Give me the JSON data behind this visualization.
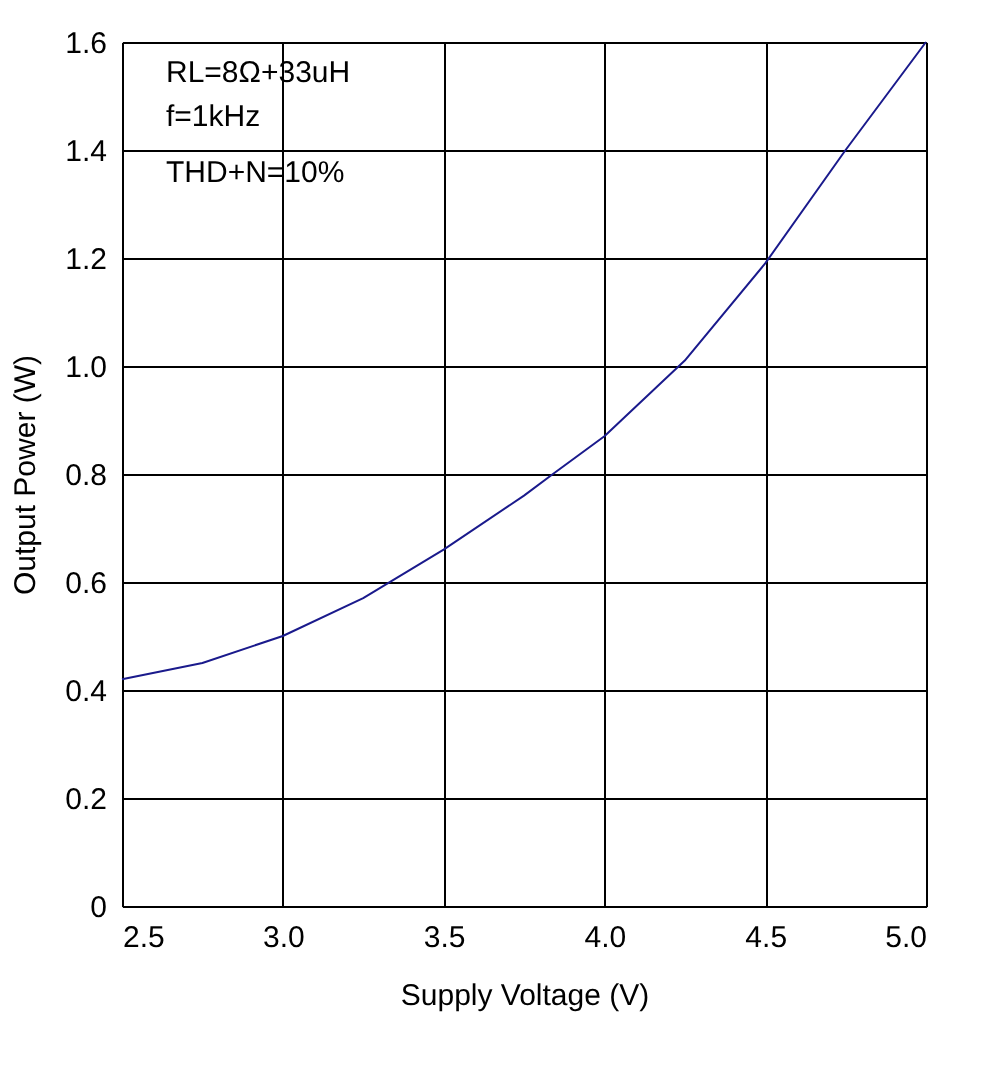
{
  "chart_data": {
    "type": "line",
    "xlabel": "Supply Voltage (V)",
    "ylabel": "Output Power (W)",
    "annotations": [
      "RL=8Ω+33uH",
      "f=1kHz",
      "THD+N=10%"
    ],
    "x": [
      2.5,
      2.75,
      3.0,
      3.25,
      3.5,
      3.75,
      3.84,
      4.0,
      4.25,
      4.5,
      4.75,
      5.0
    ],
    "series": [
      {
        "color": "#1a1a8c",
        "values": [
          0.42,
          0.45,
          0.5,
          0.57,
          0.66,
          0.76,
          0.8,
          0.87,
          1.01,
          1.19,
          1.4,
          1.6
        ]
      }
    ],
    "xlim": [
      2.5,
      5.0
    ],
    "xticks": [
      2.5,
      {
        "value": 3,
        "label": "3.0"
      },
      3.5,
      {
        "value": 4,
        "label": "4.0"
      },
      4.5,
      {
        "value": 5,
        "label": "5.0"
      }
    ],
    "ylim": [
      0,
      1.6
    ],
    "yticks": [
      0,
      0.2,
      0.4,
      0.6,
      0.8,
      {
        "value": 1,
        "label": "1.0"
      },
      1.2,
      1.4,
      1.6
    ],
    "grid": true,
    "marker": "none",
    "line_style": "solid"
  }
}
